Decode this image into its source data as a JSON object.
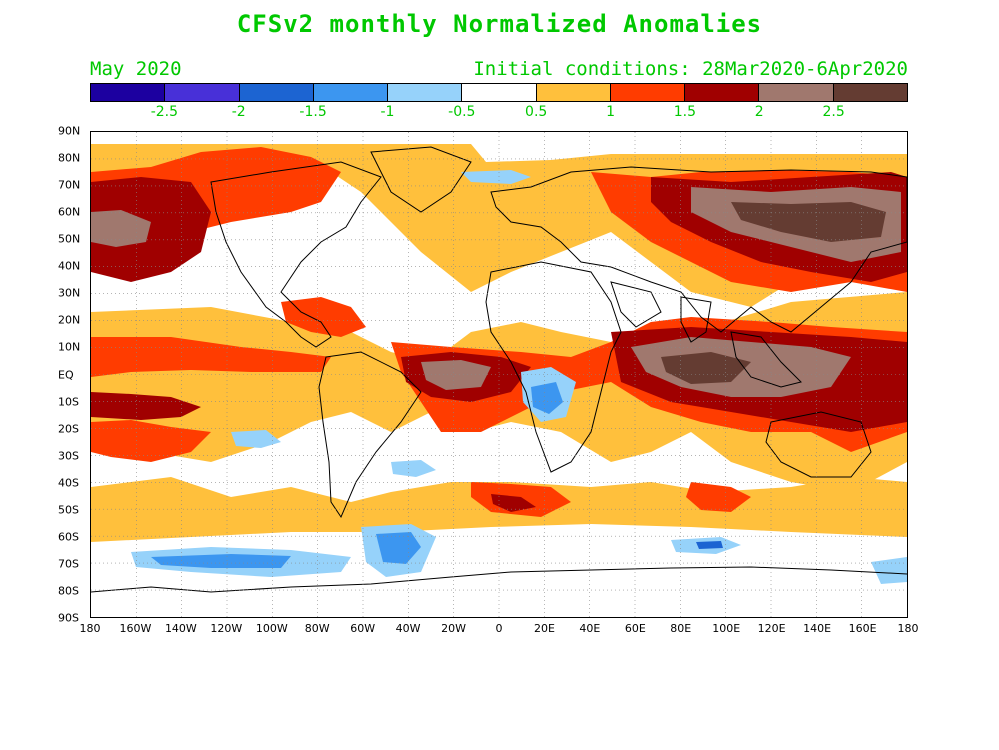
{
  "title": "CFSv2 monthly Normalized Anomalies",
  "valid_month": "May 2020",
  "initial_conditions": "Initial conditions: 28Mar2020-6Apr2020",
  "colorbar": {
    "colors": [
      "#1c00a0",
      "#4830d8",
      "#1c64d2",
      "#3c96f0",
      "#96d2fa",
      "#ffffff",
      "#ffc03c",
      "#ff3c00",
      "#a00000",
      "#a0786e",
      "#643c32"
    ],
    "labels": [
      "-2.5",
      "-2",
      "-1.5",
      "-1",
      "-0.5",
      "0.5",
      "1",
      "1.5",
      "2",
      "2.5"
    ]
  },
  "lat_labels": [
    "90N",
    "80N",
    "70N",
    "60N",
    "50N",
    "40N",
    "30N",
    "20N",
    "10N",
    "EQ",
    "10S",
    "20S",
    "30S",
    "40S",
    "50S",
    "60S",
    "70S",
    "80S",
    "90S"
  ],
  "lon_labels": [
    "180",
    "160W",
    "140W",
    "120W",
    "100W",
    "80W",
    "60W",
    "40W",
    "20W",
    "0",
    "20E",
    "40E",
    "60E",
    "80E",
    "100E",
    "120E",
    "140E",
    "160E",
    "180"
  ],
  "colors": {
    "text_green": "#00c800",
    "pos_light": "#ffc03c",
    "pos_mid": "#ff3c00",
    "pos_dark": "#a00000",
    "pos_brown": "#a0786e",
    "pos_darkbrown": "#643c32",
    "neg_light": "#96d2fa",
    "neg_mid": "#3c96f0",
    "neg_dark": "#1c64d2"
  }
}
